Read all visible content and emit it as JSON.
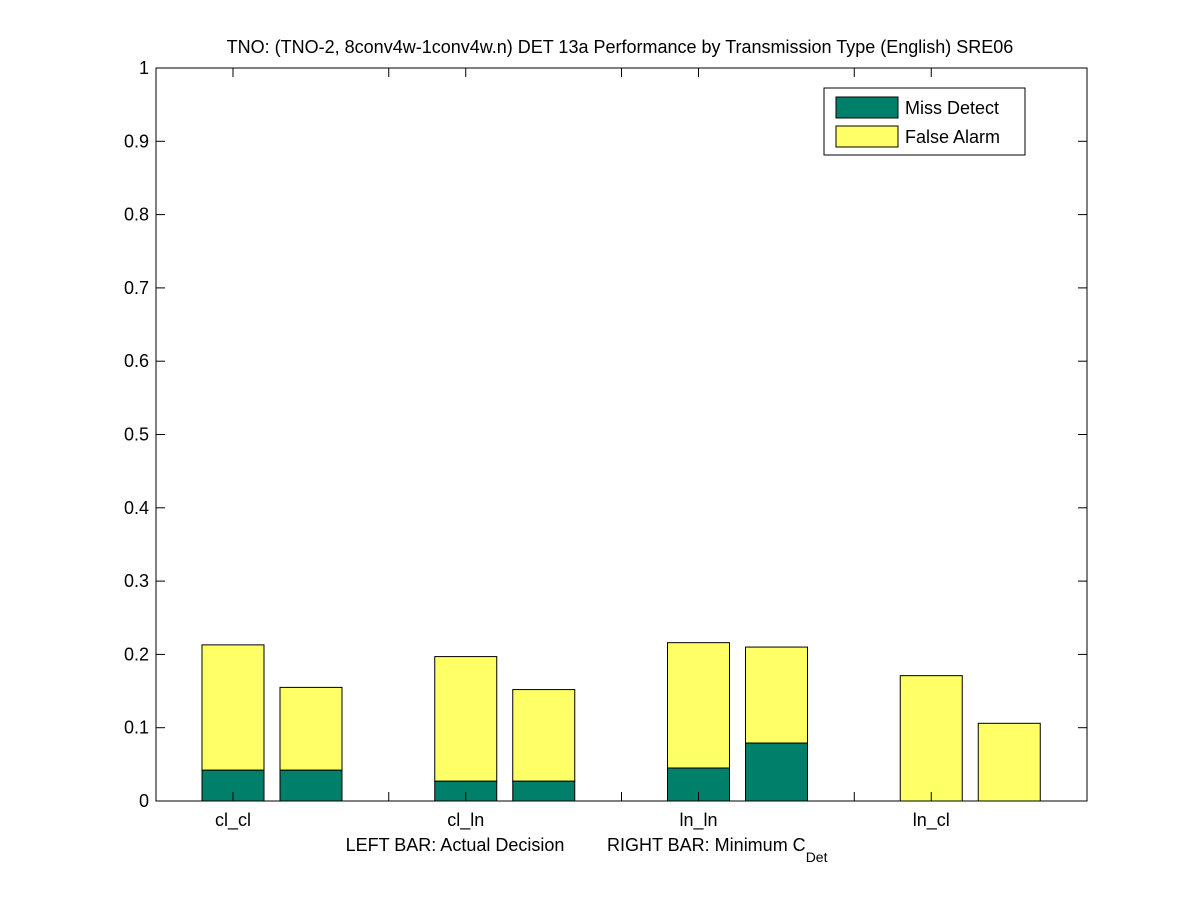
{
  "chart_data": {
    "type": "bar",
    "stacked": true,
    "title": "TNO: (TNO-2, 8conv4w-1conv4w.n) DET 13a Performance by Transmission Type (English) SRE06",
    "categories": [
      "cl_cl",
      "cl_ln",
      "ln_ln",
      "ln_cl"
    ],
    "xlabel": {
      "left": "LEFT BAR: Actual Decision",
      "right_prefix": "RIGHT BAR: Minimum C",
      "right_subscript": "Det"
    },
    "ylim": [
      0,
      1
    ],
    "yticks": [
      0,
      0.1,
      0.2,
      0.3,
      0.4,
      0.5,
      0.6,
      0.7,
      0.8,
      0.9,
      1
    ],
    "ytick_labels": [
      "0",
      "0.1",
      "0.2",
      "0.3",
      "0.4",
      "0.5",
      "0.6",
      "0.7",
      "0.8",
      "0.9",
      "1"
    ],
    "bars_per_category": [
      "Actual Decision",
      "Minimum C_Det"
    ],
    "series": [
      {
        "name": "Miss Detect",
        "color": "#00806a",
        "actual": [
          0.042,
          0.027,
          0.045,
          0.0
        ],
        "minimum": [
          0.042,
          0.027,
          0.079,
          0.0
        ]
      },
      {
        "name": "False Alarm",
        "color": "#ffff66",
        "actual": [
          0.171,
          0.17,
          0.171,
          0.171
        ],
        "minimum": [
          0.113,
          0.125,
          0.131,
          0.106
        ]
      }
    ],
    "totals": {
      "actual": [
        0.213,
        0.197,
        0.216,
        0.171
      ],
      "minimum": [
        0.155,
        0.152,
        0.21,
        0.106
      ]
    },
    "legend": {
      "position": "top-right",
      "entries": [
        "Miss Detect",
        "False Alarm"
      ]
    },
    "grid": false
  }
}
